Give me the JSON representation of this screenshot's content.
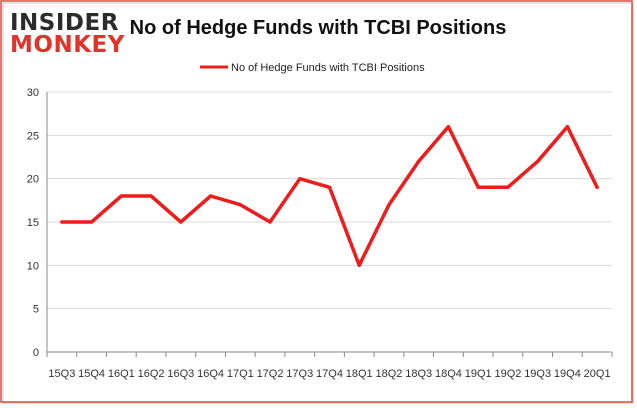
{
  "brand": {
    "line1": "INSIDER",
    "line2": "MONKEY"
  },
  "colors": {
    "series": "#ee1c1c",
    "frame": "#e34a3a",
    "grid": "#d9d9d9",
    "axis": "#888888"
  },
  "chart_data": {
    "type": "line",
    "title": "No of Hedge Funds with TCBI Positions",
    "xlabel": "",
    "ylabel": "",
    "ylim": [
      0,
      30
    ],
    "yticks": [
      0,
      5,
      10,
      15,
      20,
      25,
      30
    ],
    "grid": true,
    "legend_position": "top-center",
    "x": [
      "15Q3",
      "15Q4",
      "16Q1",
      "16Q2",
      "16Q3",
      "16Q4",
      "17Q1",
      "17Q2",
      "17Q3",
      "17Q4",
      "18Q1",
      "18Q2",
      "18Q3",
      "18Q4",
      "19Q1",
      "19Q2",
      "19Q3",
      "19Q4",
      "20Q1"
    ],
    "series": [
      {
        "name": "No of Hedge Funds with TCBI Positions",
        "values": [
          15,
          15,
          18,
          18,
          15,
          18,
          17,
          15,
          20,
          19,
          10,
          17,
          22,
          26,
          19,
          19,
          22,
          26,
          19
        ]
      }
    ]
  }
}
